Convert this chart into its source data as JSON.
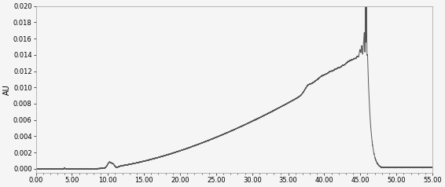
{
  "xlim": [
    0.0,
    55.0
  ],
  "ylim": [
    -0.0005,
    0.02
  ],
  "xlabel_ticks": [
    0.0,
    5.0,
    10.0,
    15.0,
    20.0,
    25.0,
    30.0,
    35.0,
    40.0,
    45.0,
    50.0,
    55.0
  ],
  "ylabel_ticks": [
    0.0,
    0.002,
    0.004,
    0.006,
    0.008,
    0.01,
    0.012,
    0.014,
    0.016,
    0.018,
    0.02
  ],
  "ylabel": "AU",
  "line_color": "#555555",
  "line_width": 0.7,
  "bg_color": "#f5f5f5",
  "spine_color": "#aaaaaa"
}
